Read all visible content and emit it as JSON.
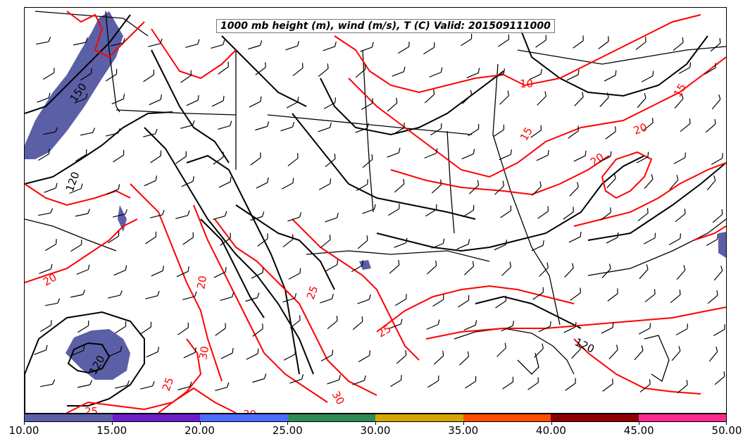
{
  "title": "1000 mb height (m), wind (m/s), T (C) Valid: 201509111000",
  "colorbar": {
    "labels": [
      "10.00",
      "15.00",
      "20.00",
      "25.00",
      "30.00",
      "35.00",
      "40.00",
      "45.00",
      "50.00"
    ],
    "colors": [
      "#5b5fa6",
      "#6a1fc9",
      "#4a6cff",
      "#2e8b57",
      "#d4a800",
      "#ff4d00",
      "#8b0000",
      "#ff2a8f"
    ]
  },
  "height_contour_labels": [
    "150",
    "120",
    "120",
    "120"
  ],
  "temperature_contour_labels": [
    "10",
    "15",
    "15",
    "20",
    "20",
    "20",
    "25",
    "25",
    "30",
    "30",
    "30",
    "25",
    "25",
    "20"
  ],
  "colors": {
    "height_contours": "#000000",
    "temperature_contours": "#ff0000",
    "wind_shading_low": "#5b5fa6",
    "boundaries": "#000000"
  }
}
